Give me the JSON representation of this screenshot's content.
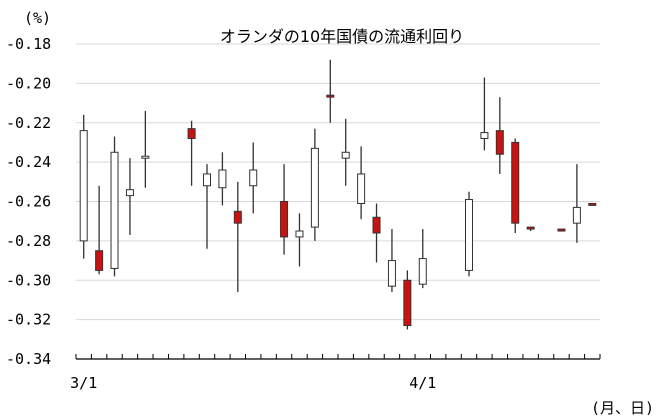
{
  "chart_data": {
    "type": "candlestick",
    "title": "オランダの10年国債の流通利回り",
    "y_unit_label": "(%)",
    "x_unit_label": "(月、日)",
    "ylim": [
      -0.34,
      -0.18
    ],
    "y_ticks": [
      -0.18,
      -0.2,
      -0.22,
      -0.24,
      -0.26,
      -0.28,
      -0.3,
      -0.32,
      -0.34
    ],
    "y_tick_labels": [
      "-0.18",
      "-0.20",
      "-0.22",
      "-0.24",
      "-0.26",
      "-0.28",
      "-0.30",
      "-0.32",
      "-0.34"
    ],
    "x_labels": [
      {
        "label": "3/1",
        "index": 0
      },
      {
        "label": "4/1",
        "index": 22
      }
    ],
    "grid": true,
    "legend": "none",
    "colors": {
      "up": "#ffffff",
      "down": "#cc1111",
      "outline": "#333333",
      "grid": "#d9d9d9"
    },
    "candles": [
      {
        "index": 0,
        "open": -0.28,
        "high": -0.216,
        "low": -0.289,
        "close": -0.224
      },
      {
        "index": 1,
        "open": -0.285,
        "high": -0.252,
        "low": -0.297,
        "close": -0.295
      },
      {
        "index": 2,
        "open": -0.294,
        "high": -0.227,
        "low": -0.298,
        "close": -0.235
      },
      {
        "index": 3,
        "open": -0.257,
        "high": -0.238,
        "low": -0.277,
        "close": -0.254
      },
      {
        "index": 4,
        "open": -0.238,
        "high": -0.214,
        "low": -0.253,
        "close": -0.237
      },
      {
        "index": 7,
        "open": -0.223,
        "high": -0.219,
        "low": -0.252,
        "close": -0.228
      },
      {
        "index": 8,
        "open": -0.252,
        "high": -0.241,
        "low": -0.284,
        "close": -0.246
      },
      {
        "index": 9,
        "open": -0.253,
        "high": -0.235,
        "low": -0.262,
        "close": -0.244
      },
      {
        "index": 10,
        "open": -0.265,
        "high": -0.25,
        "low": -0.306,
        "close": -0.271
      },
      {
        "index": 11,
        "open": -0.252,
        "high": -0.23,
        "low": -0.266,
        "close": -0.244
      },
      {
        "index": 13,
        "open": -0.26,
        "high": -0.241,
        "low": -0.287,
        "close": -0.278
      },
      {
        "index": 14,
        "open": -0.278,
        "high": -0.266,
        "low": -0.293,
        "close": -0.275
      },
      {
        "index": 15,
        "open": -0.273,
        "high": -0.223,
        "low": -0.28,
        "close": -0.233
      },
      {
        "index": 16,
        "open": -0.206,
        "high": -0.188,
        "low": -0.22,
        "close": -0.207
      },
      {
        "index": 17,
        "open": -0.238,
        "high": -0.218,
        "low": -0.252,
        "close": -0.235
      },
      {
        "index": 18,
        "open": -0.261,
        "high": -0.232,
        "low": -0.269,
        "close": -0.246
      },
      {
        "index": 19,
        "open": -0.268,
        "high": -0.261,
        "low": -0.291,
        "close": -0.276
      },
      {
        "index": 20,
        "open": -0.303,
        "high": -0.274,
        "low": -0.306,
        "close": -0.29
      },
      {
        "index": 21,
        "open": -0.3,
        "high": -0.295,
        "low": -0.325,
        "close": -0.323
      },
      {
        "index": 22,
        "open": -0.302,
        "high": -0.274,
        "low": -0.304,
        "close": -0.289
      },
      {
        "index": 25,
        "open": -0.295,
        "high": -0.255,
        "low": -0.298,
        "close": -0.259
      },
      {
        "index": 26,
        "open": -0.228,
        "high": -0.197,
        "low": -0.234,
        "close": -0.225
      },
      {
        "index": 27,
        "open": -0.224,
        "high": -0.207,
        "low": -0.246,
        "close": -0.236
      },
      {
        "index": 28,
        "open": -0.23,
        "high": -0.228,
        "low": -0.276,
        "close": -0.271
      },
      {
        "index": 29,
        "open": -0.273,
        "high": -0.273,
        "low": -0.275,
        "close": -0.274
      },
      {
        "index": 31,
        "open": -0.274,
        "high": -0.274,
        "low": -0.275,
        "close": -0.275
      },
      {
        "index": 32,
        "open": -0.271,
        "high": -0.241,
        "low": -0.281,
        "close": -0.263
      },
      {
        "index": 33,
        "open": -0.261,
        "high": -0.261,
        "low": -0.262,
        "close": -0.262
      }
    ]
  }
}
